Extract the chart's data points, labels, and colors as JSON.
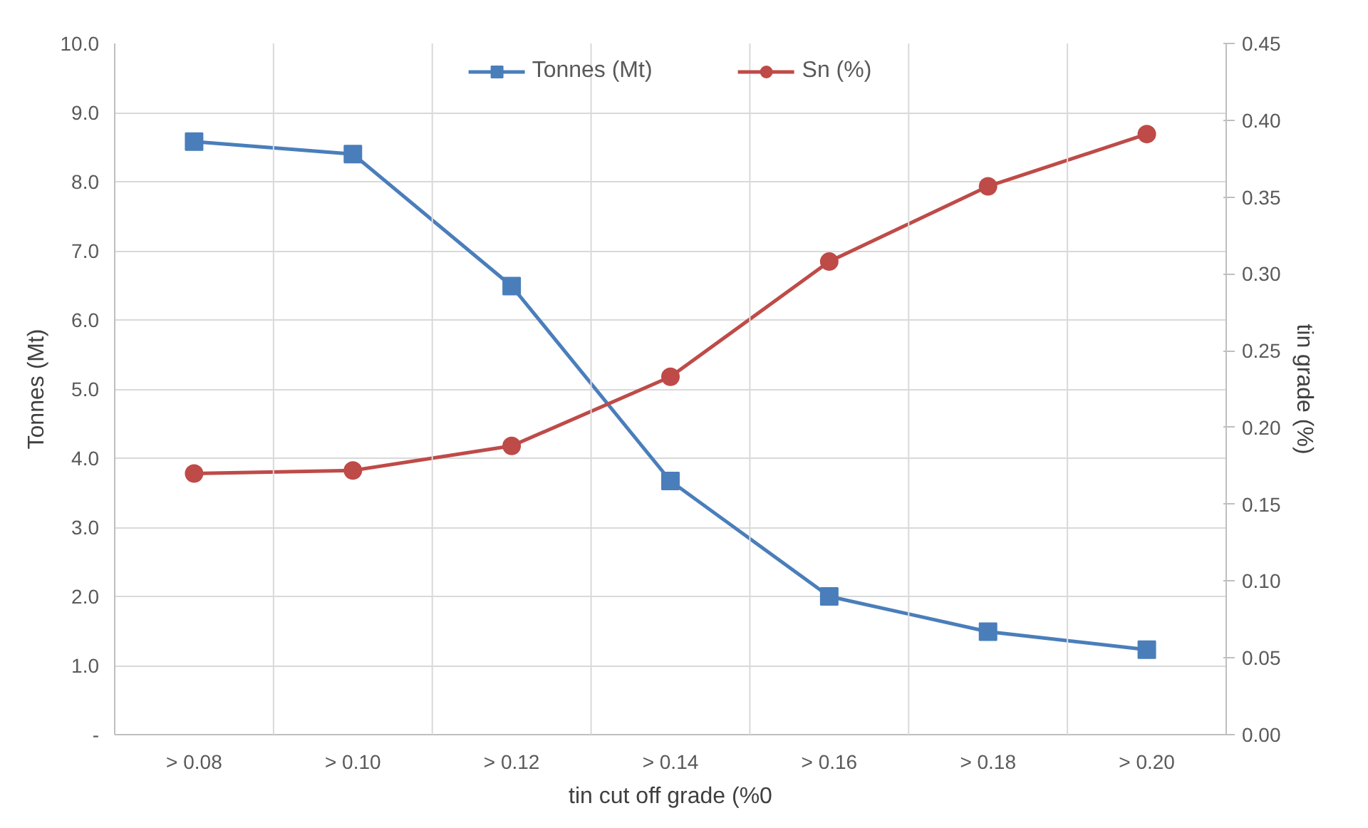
{
  "chart_data": {
    "type": "line",
    "xlabel": "tin cut off grade (%0",
    "ylabel": "Tonnes (Mt)",
    "y2label": "tin grade (%)",
    "categories": [
      "> 0.08",
      "> 0.10",
      "> 0.12",
      "> 0.14",
      "> 0.16",
      "> 0.18",
      "> 0.20"
    ],
    "series": [
      {
        "name": "Tonnes (Mt)",
        "color": "#4a7ebb",
        "marker": "square",
        "values": [
          8.58,
          8.4,
          6.49,
          3.67,
          2.0,
          1.49,
          1.23
        ]
      },
      {
        "name": "Sn (%)",
        "color": "#be4b48",
        "marker": "circle",
        "axis": "y2",
        "values": [
          0.17,
          0.172,
          0.188,
          0.233,
          0.308,
          0.357,
          0.391
        ]
      }
    ],
    "ylim": [
      0,
      10
    ],
    "yticks": [
      {
        "value": 0,
        "label": "-"
      },
      {
        "value": 1,
        "label": "1.0"
      },
      {
        "value": 2,
        "label": "2.0"
      },
      {
        "value": 3,
        "label": "3.0"
      },
      {
        "value": 4,
        "label": "4.0"
      },
      {
        "value": 5,
        "label": "5.0"
      },
      {
        "value": 6,
        "label": "6.0"
      },
      {
        "value": 7,
        "label": "7.0"
      },
      {
        "value": 8,
        "label": "8.0"
      },
      {
        "value": 9,
        "label": "9.0"
      },
      {
        "value": 10,
        "label": "10.0"
      }
    ],
    "y2lim": [
      0,
      0.45
    ],
    "y2ticks": [
      {
        "value": 0,
        "label": "0.00"
      },
      {
        "value": 0.05,
        "label": "0.05"
      },
      {
        "value": 0.1,
        "label": "0.10"
      },
      {
        "value": 0.15,
        "label": "0.15"
      },
      {
        "value": 0.2,
        "label": "0.20"
      },
      {
        "value": 0.25,
        "label": "0.25"
      },
      {
        "value": 0.3,
        "label": "0.30"
      },
      {
        "value": 0.35,
        "label": "0.35"
      },
      {
        "value": 0.4,
        "label": "0.40"
      },
      {
        "value": 0.45,
        "label": "0.45"
      }
    ],
    "grid": true,
    "legend": "top",
    "line_style": "solid"
  }
}
